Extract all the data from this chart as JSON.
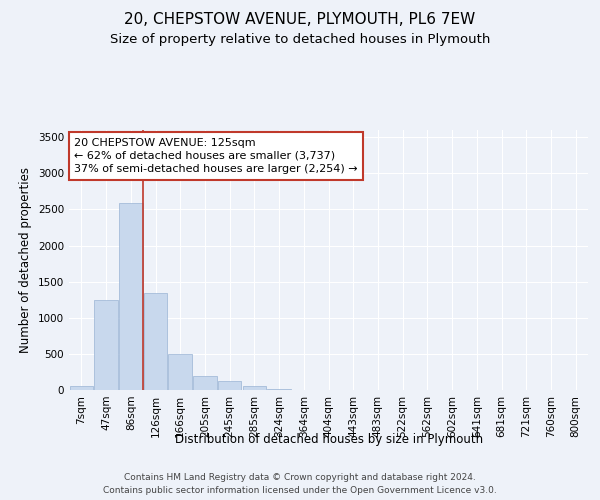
{
  "title_line1": "20, CHEPSTOW AVENUE, PLYMOUTH, PL6 7EW",
  "title_line2": "Size of property relative to detached houses in Plymouth",
  "xlabel": "Distribution of detached houses by size in Plymouth",
  "ylabel": "Number of detached properties",
  "categories": [
    "7sqm",
    "47sqm",
    "86sqm",
    "126sqm",
    "166sqm",
    "205sqm",
    "245sqm",
    "285sqm",
    "324sqm",
    "364sqm",
    "404sqm",
    "443sqm",
    "483sqm",
    "522sqm",
    "562sqm",
    "602sqm",
    "641sqm",
    "681sqm",
    "721sqm",
    "760sqm",
    "800sqm"
  ],
  "values": [
    50,
    1240,
    2590,
    1350,
    500,
    200,
    120,
    55,
    10,
    3,
    0,
    0,
    0,
    0,
    0,
    0,
    0,
    0,
    0,
    0,
    0
  ],
  "bar_color": "#c8d8ed",
  "bar_edgecolor": "#9ab4d4",
  "ylim": [
    0,
    3600
  ],
  "yticks": [
    0,
    500,
    1000,
    1500,
    2000,
    2500,
    3000,
    3500
  ],
  "vline_pos": 2.5,
  "vline_color": "#c0392b",
  "annotation_text": "20 CHEPSTOW AVENUE: 125sqm\n← 62% of detached houses are smaller (3,737)\n37% of semi-detached houses are larger (2,254) →",
  "annotation_box_color": "#c0392b",
  "footer_line1": "Contains HM Land Registry data © Crown copyright and database right 2024.",
  "footer_line2": "Contains public sector information licensed under the Open Government Licence v3.0.",
  "bg_color": "#eef2f9",
  "plot_bg_color": "#eef2f9",
  "grid_color": "#ffffff",
  "title_fontsize": 11,
  "subtitle_fontsize": 9.5,
  "axis_label_fontsize": 8.5,
  "tick_fontsize": 7.5,
  "annotation_fontsize": 8,
  "footer_fontsize": 6.5
}
